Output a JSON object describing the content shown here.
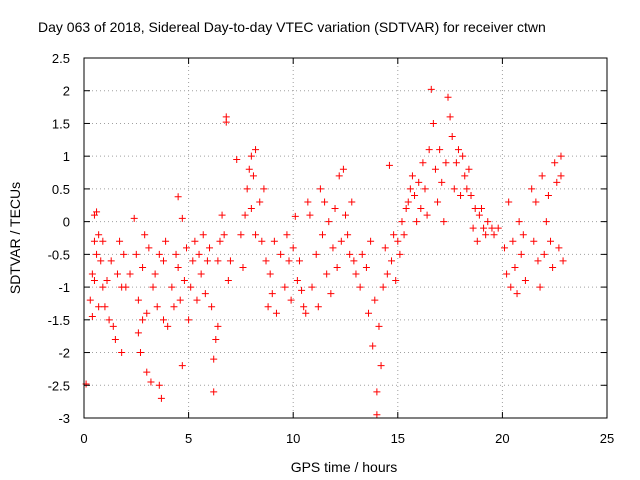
{
  "chart_data": {
    "type": "scatter",
    "title": "Day 063 of 2018, Sidereal Day-to-day VTEC variation (SDTVAR) for receiver ctwn",
    "xlabel": "GPS time / hours",
    "ylabel": "SDTVAR / TECUs",
    "xlim": [
      0,
      25
    ],
    "ylim": [
      -3,
      2.5
    ],
    "x_ticks": [
      0,
      5,
      10,
      15,
      20,
      25
    ],
    "y_ticks": [
      -3,
      -2.5,
      -2,
      -1.5,
      -1,
      -0.5,
      0,
      0.5,
      1,
      1.5,
      2,
      2.5
    ],
    "x_tick_labels": [
      "0",
      "5",
      "10",
      "15",
      "20",
      "25"
    ],
    "y_tick_labels": [
      "-3",
      "-2.5",
      "-2",
      "-1.5",
      "-1",
      "-0.5",
      "0",
      "0.5",
      "1",
      "1.5",
      "2",
      "2.5"
    ],
    "grid": true,
    "marker": "+",
    "color": "#ff0000",
    "series": [
      {
        "name": "SDTVAR",
        "points": [
          [
            0.1,
            -2.48
          ],
          [
            0.3,
            -1.2
          ],
          [
            0.4,
            -0.8
          ],
          [
            0.4,
            -1.45
          ],
          [
            0.5,
            0.1
          ],
          [
            0.5,
            -0.3
          ],
          [
            0.5,
            -0.9
          ],
          [
            0.6,
            0.15
          ],
          [
            0.6,
            -0.5
          ],
          [
            0.7,
            -1.3
          ],
          [
            0.7,
            -0.2
          ],
          [
            0.8,
            -0.6
          ],
          [
            0.9,
            -0.3
          ],
          [
            0.9,
            -1.0
          ],
          [
            1.0,
            -1.3
          ],
          [
            1.1,
            -0.9
          ],
          [
            1.2,
            -1.5
          ],
          [
            1.3,
            -0.6
          ],
          [
            1.4,
            -1.6
          ],
          [
            1.5,
            -1.8
          ],
          [
            1.6,
            -0.8
          ],
          [
            1.7,
            -0.3
          ],
          [
            1.8,
            -1.0
          ],
          [
            1.8,
            -2.0
          ],
          [
            1.9,
            -0.5
          ],
          [
            2.0,
            -1.0
          ],
          [
            2.2,
            -0.8
          ],
          [
            2.4,
            0.05
          ],
          [
            2.5,
            -0.5
          ],
          [
            2.6,
            -1.2
          ],
          [
            2.6,
            -1.7
          ],
          [
            2.7,
            -2.0
          ],
          [
            2.8,
            -1.5
          ],
          [
            2.8,
            -0.7
          ],
          [
            2.9,
            -0.2
          ],
          [
            3.0,
            -2.3
          ],
          [
            3.0,
            -1.4
          ],
          [
            3.1,
            -0.4
          ],
          [
            3.2,
            -2.45
          ],
          [
            3.3,
            -1.0
          ],
          [
            3.4,
            -0.8
          ],
          [
            3.5,
            -1.3
          ],
          [
            3.6,
            -2.5
          ],
          [
            3.6,
            -0.5
          ],
          [
            3.7,
            -2.7
          ],
          [
            3.8,
            -0.6
          ],
          [
            3.8,
            -1.5
          ],
          [
            3.9,
            -0.3
          ],
          [
            4.0,
            -1.6
          ],
          [
            4.2,
            -1.0
          ],
          [
            4.3,
            -1.3
          ],
          [
            4.4,
            -0.5
          ],
          [
            4.5,
            0.38
          ],
          [
            4.5,
            -0.7
          ],
          [
            4.6,
            -1.2
          ],
          [
            4.7,
            -2.2
          ],
          [
            4.7,
            0.05
          ],
          [
            4.8,
            -0.9
          ],
          [
            4.9,
            -0.4
          ],
          [
            5.0,
            -1.5
          ],
          [
            5.1,
            -1.0
          ],
          [
            5.2,
            -0.6
          ],
          [
            5.3,
            -0.3
          ],
          [
            5.4,
            -1.2
          ],
          [
            5.5,
            -0.5
          ],
          [
            5.6,
            -0.8
          ],
          [
            5.7,
            -0.2
          ],
          [
            5.8,
            -1.1
          ],
          [
            5.9,
            -0.6
          ],
          [
            6.0,
            -0.4
          ],
          [
            6.1,
            -1.3
          ],
          [
            6.2,
            -2.6
          ],
          [
            6.2,
            -2.1
          ],
          [
            6.3,
            -1.8
          ],
          [
            6.4,
            -0.6
          ],
          [
            6.4,
            -1.6
          ],
          [
            6.5,
            -0.3
          ],
          [
            6.6,
            0.1
          ],
          [
            6.7,
            -0.2
          ],
          [
            6.8,
            1.52
          ],
          [
            6.8,
            1.6
          ],
          [
            6.9,
            -0.9
          ],
          [
            7.0,
            -0.6
          ],
          [
            7.3,
            0.95
          ],
          [
            7.5,
            -0.2
          ],
          [
            7.6,
            -0.7
          ],
          [
            7.7,
            0.1
          ],
          [
            7.8,
            0.5
          ],
          [
            7.9,
            0.8
          ],
          [
            8.0,
            1.0
          ],
          [
            8.0,
            0.2
          ],
          [
            8.1,
            0.7
          ],
          [
            8.2,
            1.1
          ],
          [
            8.2,
            -0.2
          ],
          [
            8.4,
            0.3
          ],
          [
            8.5,
            -0.3
          ],
          [
            8.6,
            0.5
          ],
          [
            8.7,
            -0.6
          ],
          [
            8.8,
            -1.3
          ],
          [
            8.9,
            -0.8
          ],
          [
            9.0,
            -1.1
          ],
          [
            9.1,
            -0.3
          ],
          [
            9.2,
            -1.4
          ],
          [
            9.4,
            -0.5
          ],
          [
            9.6,
            -1.0
          ],
          [
            9.7,
            -0.2
          ],
          [
            9.8,
            -0.6
          ],
          [
            9.9,
            -1.2
          ],
          [
            10.0,
            -0.4
          ],
          [
            10.1,
            0.08
          ],
          [
            10.2,
            -0.9
          ],
          [
            10.3,
            -0.6
          ],
          [
            10.4,
            -1.05
          ],
          [
            10.5,
            -1.3
          ],
          [
            10.6,
            -1.4
          ],
          [
            10.7,
            0.3
          ],
          [
            10.8,
            0.1
          ],
          [
            10.9,
            -1.0
          ],
          [
            11.1,
            -0.5
          ],
          [
            11.2,
            -1.3
          ],
          [
            11.3,
            0.5
          ],
          [
            11.4,
            -0.2
          ],
          [
            11.5,
            0.3
          ],
          [
            11.6,
            -0.8
          ],
          [
            11.7,
            0.0
          ],
          [
            11.8,
            -1.1
          ],
          [
            11.9,
            -0.4
          ],
          [
            12.0,
            0.2
          ],
          [
            12.1,
            -0.7
          ],
          [
            12.2,
            0.7
          ],
          [
            12.3,
            -0.3
          ],
          [
            12.4,
            0.8
          ],
          [
            12.5,
            0.1
          ],
          [
            12.6,
            -0.2
          ],
          [
            12.7,
            -0.5
          ],
          [
            12.8,
            0.3
          ],
          [
            12.9,
            -0.6
          ],
          [
            13.0,
            -0.8
          ],
          [
            13.2,
            -1.0
          ],
          [
            13.3,
            -0.5
          ],
          [
            13.5,
            -0.7
          ],
          [
            13.6,
            -1.4
          ],
          [
            13.7,
            -0.3
          ],
          [
            13.8,
            -1.9
          ],
          [
            13.9,
            -1.2
          ],
          [
            14.0,
            -2.95
          ],
          [
            14.0,
            -2.6
          ],
          [
            14.1,
            -1.6
          ],
          [
            14.2,
            -2.2
          ],
          [
            14.3,
            -1.0
          ],
          [
            14.4,
            -0.4
          ],
          [
            14.5,
            -0.8
          ],
          [
            14.6,
            0.86
          ],
          [
            14.7,
            -0.6
          ],
          [
            14.8,
            -0.2
          ],
          [
            14.9,
            -0.9
          ],
          [
            15.0,
            -0.3
          ],
          [
            15.1,
            -0.5
          ],
          [
            15.2,
            0.0
          ],
          [
            15.3,
            -0.2
          ],
          [
            15.4,
            0.2
          ],
          [
            15.5,
            0.3
          ],
          [
            15.6,
            0.5
          ],
          [
            15.7,
            0.7
          ],
          [
            15.8,
            0.4
          ],
          [
            15.9,
            0.0
          ],
          [
            16.0,
            0.6
          ],
          [
            16.1,
            0.2
          ],
          [
            16.2,
            0.9
          ],
          [
            16.3,
            0.5
          ],
          [
            16.4,
            0.1
          ],
          [
            16.5,
            1.1
          ],
          [
            16.6,
            2.02
          ],
          [
            16.7,
            1.5
          ],
          [
            16.8,
            0.8
          ],
          [
            16.9,
            0.3
          ],
          [
            17.0,
            1.1
          ],
          [
            17.1,
            0.6
          ],
          [
            17.2,
            0.0
          ],
          [
            17.3,
            0.9
          ],
          [
            17.4,
            1.9
          ],
          [
            17.5,
            1.6
          ],
          [
            17.6,
            1.3
          ],
          [
            17.7,
            0.5
          ],
          [
            17.8,
            0.9
          ],
          [
            17.9,
            1.1
          ],
          [
            18.0,
            0.4
          ],
          [
            18.1,
            1.0
          ],
          [
            18.2,
            0.7
          ],
          [
            18.3,
            0.5
          ],
          [
            18.4,
            0.8
          ],
          [
            18.5,
            0.4
          ],
          [
            18.6,
            -0.1
          ],
          [
            18.7,
            0.2
          ],
          [
            18.8,
            -0.3
          ],
          [
            18.9,
            0.1
          ],
          [
            19.0,
            0.2
          ],
          [
            19.1,
            -0.1
          ],
          [
            19.2,
            -0.2
          ],
          [
            19.3,
            0.0
          ],
          [
            19.5,
            -0.1
          ],
          [
            19.6,
            -0.2
          ],
          [
            19.8,
            -0.1
          ],
          [
            20.1,
            -0.4
          ],
          [
            20.2,
            -0.8
          ],
          [
            20.3,
            0.3
          ],
          [
            20.4,
            -1.0
          ],
          [
            20.5,
            -0.3
          ],
          [
            20.6,
            -0.7
          ],
          [
            20.7,
            -1.1
          ],
          [
            20.8,
            0.0
          ],
          [
            20.9,
            -0.5
          ],
          [
            21.0,
            -0.2
          ],
          [
            21.1,
            -0.9
          ],
          [
            21.4,
            0.5
          ],
          [
            21.5,
            -0.3
          ],
          [
            21.6,
            0.3
          ],
          [
            21.7,
            -0.6
          ],
          [
            21.8,
            -1.0
          ],
          [
            21.9,
            0.7
          ],
          [
            22.0,
            -0.5
          ],
          [
            22.1,
            0.0
          ],
          [
            22.2,
            0.4
          ],
          [
            22.3,
            -0.3
          ],
          [
            22.4,
            -0.7
          ],
          [
            22.5,
            0.9
          ],
          [
            22.6,
            0.6
          ],
          [
            22.7,
            -0.4
          ],
          [
            22.8,
            1.0
          ],
          [
            22.8,
            0.7
          ],
          [
            22.9,
            -0.6
          ]
        ]
      }
    ]
  }
}
